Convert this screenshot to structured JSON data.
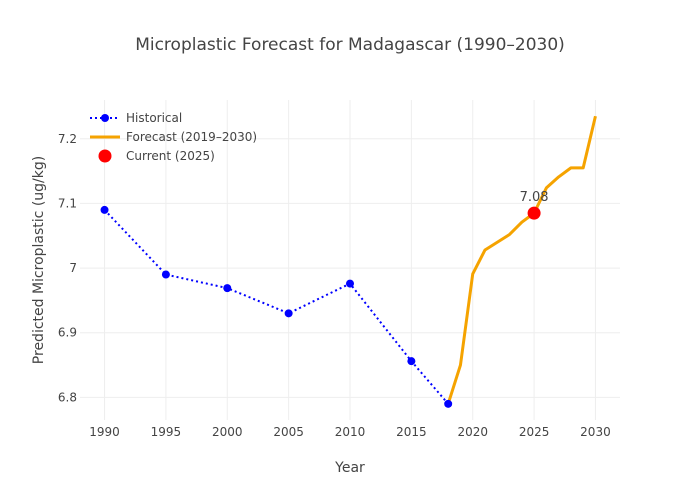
{
  "chart_data": {
    "type": "line",
    "title": "Microplastic Forecast for Madagascar (1990–2030)",
    "xlabel": "Year",
    "ylabel": "Predicted Microplastic (ug/kg)",
    "xlim": [
      1988,
      2032
    ],
    "ylim": [
      6.765,
      7.26
    ],
    "x_ticks": [
      1990,
      1995,
      2000,
      2005,
      2010,
      2015,
      2020,
      2025,
      2030
    ],
    "y_ticks": [
      6.8,
      6.9,
      7.0,
      7.1,
      7.2
    ],
    "y_tick_labels": [
      "6.8",
      "6.9",
      "7",
      "7.1",
      "7.2"
    ],
    "grid": true,
    "legend_position": "top-left",
    "series": [
      {
        "name": "Historical",
        "style": "dotted-line-markers",
        "color": "#0000ff",
        "x": [
          1990,
          1995,
          2000,
          2005,
          2010,
          2015,
          2018
        ],
        "y": [
          7.09,
          6.99,
          6.969,
          6.93,
          6.976,
          6.856,
          6.79
        ]
      },
      {
        "name": "Forecast (2019–2030)",
        "style": "solid-line",
        "color": "#f5a300",
        "x": [
          2018,
          2019,
          2020,
          2021,
          2022,
          2023,
          2024,
          2025,
          2026,
          2027,
          2028,
          2029,
          2030
        ],
        "y": [
          6.79,
          6.85,
          6.991,
          7.028,
          7.04,
          7.052,
          7.071,
          7.085,
          7.124,
          7.141,
          7.155,
          7.155,
          7.235
        ]
      },
      {
        "name": "Current (2025)",
        "style": "marker",
        "color": "#ff0000",
        "x": [
          2025
        ],
        "y": [
          7.085
        ]
      }
    ],
    "annotation": {
      "x": 2025,
      "y": 7.085,
      "text": "7.08"
    }
  }
}
